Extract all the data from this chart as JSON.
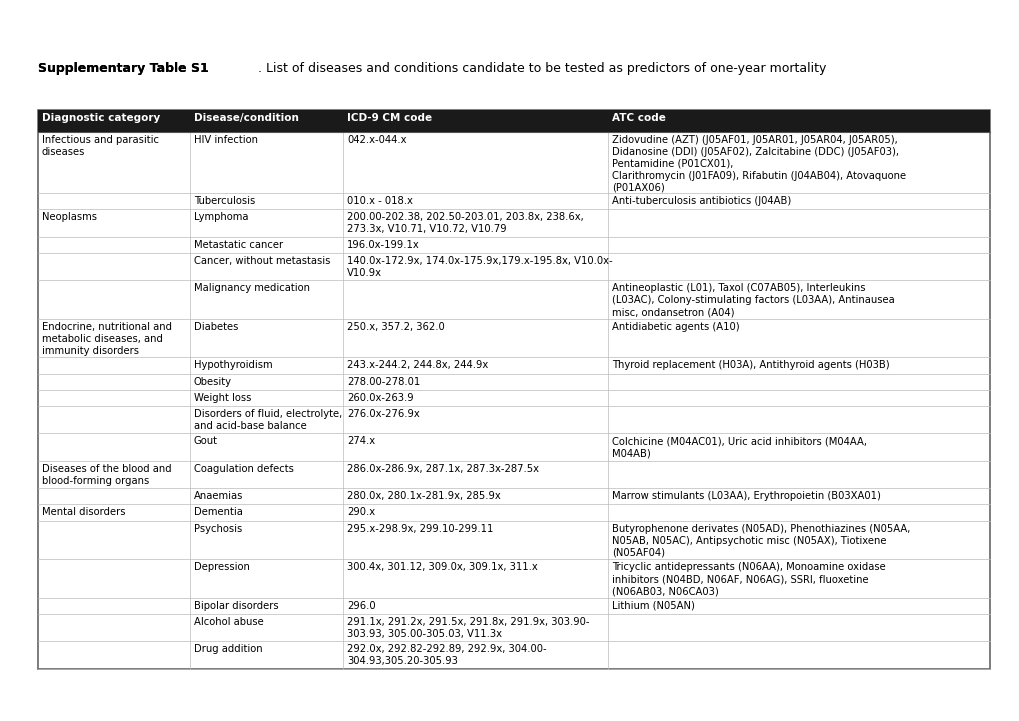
{
  "title_bold": "Supplementary Table S1",
  "title_normal": ". List of diseases and conditions candidate to be tested as predictors of one-year mortality",
  "headers": [
    "Diagnostic category",
    "Disease/condition",
    "ICD-9 CM code",
    "ATC code"
  ],
  "header_bg": "#1a1a1a",
  "header_fg": "#ffffff",
  "font_size": 7.2,
  "header_font_size": 7.5,
  "title_font_size": 9.0,
  "rows": [
    {
      "category": "Infectious and parasitic\ndiseases",
      "disease": "HIV infection",
      "icd": "042.x-044.x",
      "atc": "Zidovudine (AZT) (J05AF01, J05AR01, J05AR04, J05AR05),\nDidanosine (DDI) (J05AF02), Zalcitabine (DDC) (J05AF03),\nPentamidine (P01CX01),\nClarithromycin (J01FA09), Rifabutin (J04AB04), Atovaquone\n(P01AX06)"
    },
    {
      "category": "",
      "disease": "Tuberculosis",
      "icd": "010.x - 018.x",
      "atc": "Anti-tuberculosis antibiotics (J04AB)"
    },
    {
      "category": "Neoplasms",
      "disease": "Lymphoma",
      "icd": "200.00-202.38, 202.50-203.01, 203.8x, 238.6x,\n273.3x, V10.71, V10.72, V10.79",
      "atc": ""
    },
    {
      "category": "",
      "disease": "Metastatic cancer",
      "icd": "196.0x-199.1x",
      "atc": ""
    },
    {
      "category": "",
      "disease": "Cancer, without metastasis",
      "icd": "140.0x-172.9x, 174.0x-175.9x,179.x-195.8x, V10.0x-\nV10.9x",
      "atc": ""
    },
    {
      "category": "",
      "disease": "Malignancy medication",
      "icd": "",
      "atc": "Antineoplastic (L01), Taxol (C07AB05), Interleukins\n(L03AC), Colony-stimulating factors (L03AA), Antinausea\nmisc, ondansetron (A04)"
    },
    {
      "category": "Endocrine, nutritional and\nmetabolic diseases, and\nimmunity disorders",
      "disease": "Diabetes",
      "icd": "250.x, 357.2, 362.0",
      "atc": "Antidiabetic agents (A10)"
    },
    {
      "category": "",
      "disease": "Hypothyroidism",
      "icd": "243.x-244.2, 244.8x, 244.9x",
      "atc": "Thyroid replacement (H03A), Antithyroid agents (H03B)"
    },
    {
      "category": "",
      "disease": "Obesity",
      "icd": "278.00-278.01",
      "atc": ""
    },
    {
      "category": "",
      "disease": "Weight loss",
      "icd": "260.0x-263.9",
      "atc": ""
    },
    {
      "category": "",
      "disease": "Disorders of fluid, electrolyte,\nand acid-base balance",
      "icd": "276.0x-276.9x",
      "atc": ""
    },
    {
      "category": "",
      "disease": "Gout",
      "icd": "274.x",
      "atc": "Colchicine (M04AC01), Uric acid inhibitors (M04AA,\nM04AB)"
    },
    {
      "category": "Diseases of the blood and\nblood-forming organs",
      "disease": "Coagulation defects",
      "icd": "286.0x-286.9x, 287.1x, 287.3x-287.5x",
      "atc": ""
    },
    {
      "category": "",
      "disease": "Anaemias",
      "icd": "280.0x, 280.1x-281.9x, 285.9x",
      "atc": "Marrow stimulants (L03AA), Erythropoietin (B03XA01)"
    },
    {
      "category": "Mental disorders",
      "disease": "Dementia",
      "icd": "290.x",
      "atc": ""
    },
    {
      "category": "",
      "disease": "Psychosis",
      "icd": "295.x-298.9x, 299.10-299.11",
      "atc": "Butyrophenone derivates (N05AD), Phenothiazines (N05AA,\nN05AB, N05AC), Antipsychotic misc (N05AX), Tiotixene\n(N05AF04)"
    },
    {
      "category": "",
      "disease": "Depression",
      "icd": "300.4x, 301.12, 309.0x, 309.1x, 311.x",
      "atc": "Tricyclic antidepressants (N06AA), Monoamine oxidase\ninhibitors (N04BD, N06AF, N06AG), SSRI, fluoxetine\n(N06AB03, N06CA03)"
    },
    {
      "category": "",
      "disease": "Bipolar disorders",
      "icd": "296.0",
      "atc": "Lithium (N05AN)"
    },
    {
      "category": "",
      "disease": "Alcohol abuse",
      "icd": "291.1x, 291.2x, 291.5x, 291.8x, 291.9x, 303.90-\n303.93, 305.00-305.03, V11.3x",
      "atc": ""
    },
    {
      "category": "",
      "disease": "Drug addition",
      "icd": "292.0x, 292.82-292.89, 292.9x, 304.00-\n304.93,305.20-305.93",
      "atc": ""
    }
  ]
}
